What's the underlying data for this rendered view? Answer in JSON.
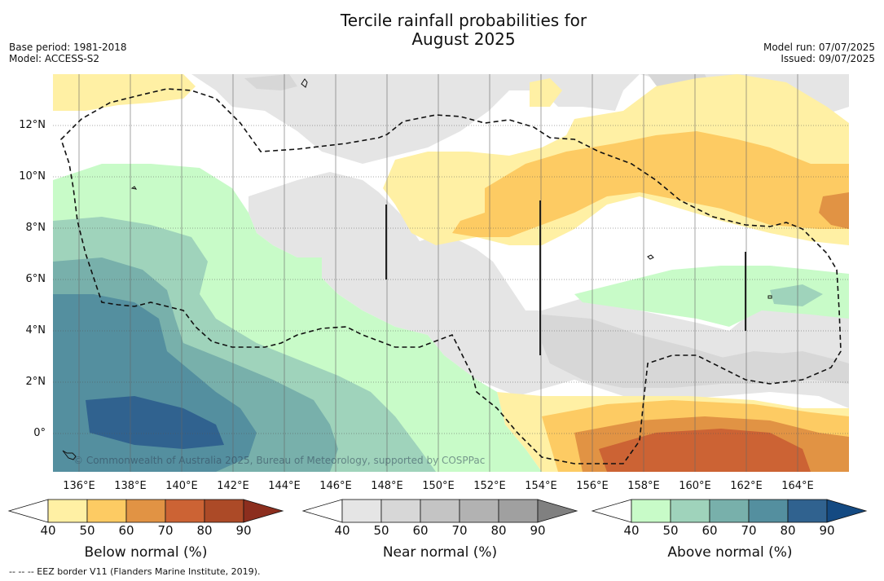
{
  "title": "Tercile rainfall probabilities for\nAugust 2025",
  "base_period": "Base period: 1981-2018",
  "model": "Model: ACCESS-S2",
  "model_run": "Model run: 07/07/2025",
  "issued": "Issued: 09/07/2025",
  "copyright": "© Commonwealth of Australia 2025, Bureau of Meteorology, supported by COSPPac",
  "footnote": "--  --  -- EEZ border V11 (Flanders Marine Institute, 2019).",
  "lat_labels": [
    "12°N",
    "10°N",
    "8°N",
    "6°N",
    "4°N",
    "2°N",
    "0°"
  ],
  "lon_labels": [
    "136°E",
    "138°E",
    "140°E",
    "142°E",
    "144°E",
    "146°E",
    "148°E",
    "150°E",
    "152°E",
    "154°E",
    "156°E",
    "158°E",
    "160°E",
    "162°E",
    "164°E"
  ],
  "legends": [
    {
      "label": "Below normal (%)",
      "ticks": [
        "40",
        "50",
        "60",
        "70",
        "80",
        "90"
      ],
      "colors": [
        "#ffffff",
        "#fff0a4",
        "#fdcb63",
        "#e19344",
        "#cc6334",
        "#ac4a27",
        "#8c2e1e"
      ]
    },
    {
      "label": "Near normal (%)",
      "ticks": [
        "40",
        "50",
        "60",
        "70",
        "80",
        "90"
      ],
      "colors": [
        "#ffffff",
        "#e5e5e5",
        "#d7d7d7",
        "#c4c4c4",
        "#b2b2b2",
        "#a0a0a0",
        "#808080"
      ]
    },
    {
      "label": "Above normal (%)",
      "ticks": [
        "40",
        "50",
        "60",
        "70",
        "80",
        "90"
      ],
      "colors": [
        "#ffffff",
        "#c8fbc8",
        "#9fd3bb",
        "#78b0ab",
        "#548f9f",
        "#30628f",
        "#144a82"
      ]
    }
  ],
  "map_colors": {
    "below_50": "#fff0a4",
    "below_60": "#fdcb63",
    "below_70": "#e19344",
    "below_80": "#cc6334",
    "near_50": "#e5e5e5",
    "near_60": "#d7d7d7",
    "near_70": "#c4c4c4",
    "above_50": "#c8fbc8",
    "above_60": "#9fd3bb",
    "above_70": "#78b0ab",
    "above_80": "#548f9f",
    "above_90": "#30628f"
  }
}
